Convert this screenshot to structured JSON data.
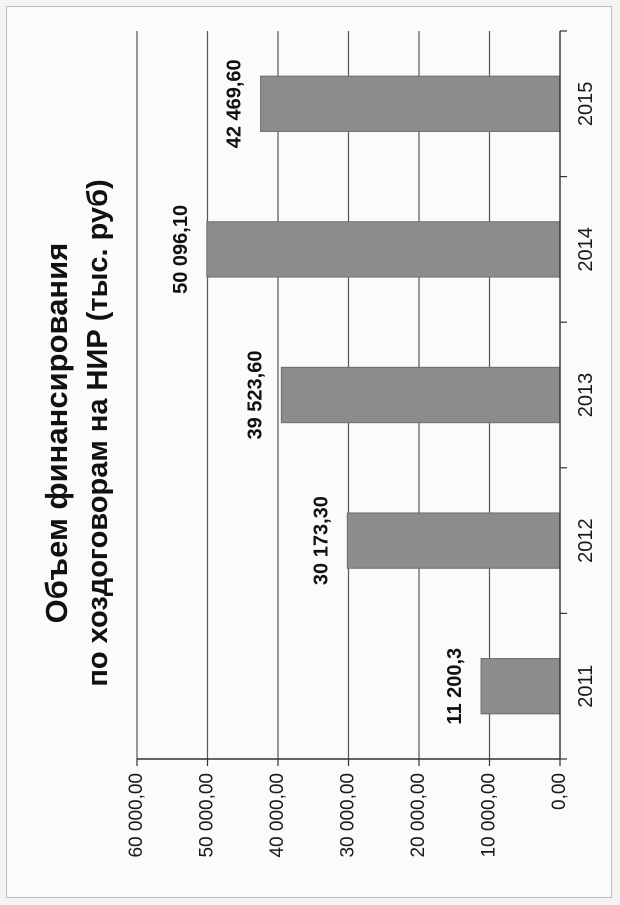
{
  "chart_data": {
    "type": "bar",
    "orientation": "vertical",
    "title": "Объем финансирования",
    "subtitle": "по хоздоговорам на НИР (тыс. руб)",
    "categories": [
      "2011",
      "2012",
      "2013",
      "2014",
      "2015"
    ],
    "values": [
      11200.3,
      30173.3,
      39523.6,
      50096.1,
      42469.6
    ],
    "data_labels": [
      "11 200,3",
      "30 173,30",
      "39 523,60",
      "50 096,10",
      "42 469,60"
    ],
    "y_ticks": [
      0,
      10000,
      20000,
      30000,
      40000,
      50000,
      60000
    ],
    "y_tick_labels": [
      "0,00",
      "10 000,00",
      "20 000,00",
      "30 000,00",
      "40 000,00",
      "50 000,00",
      "60 000,00"
    ],
    "ylim": [
      0,
      60000
    ],
    "xlabel": "",
    "ylabel": "",
    "grid": true,
    "legend": "none",
    "colors": {
      "bar": "#8c8c8c",
      "grid": "#555555",
      "axis": "#333333"
    }
  }
}
